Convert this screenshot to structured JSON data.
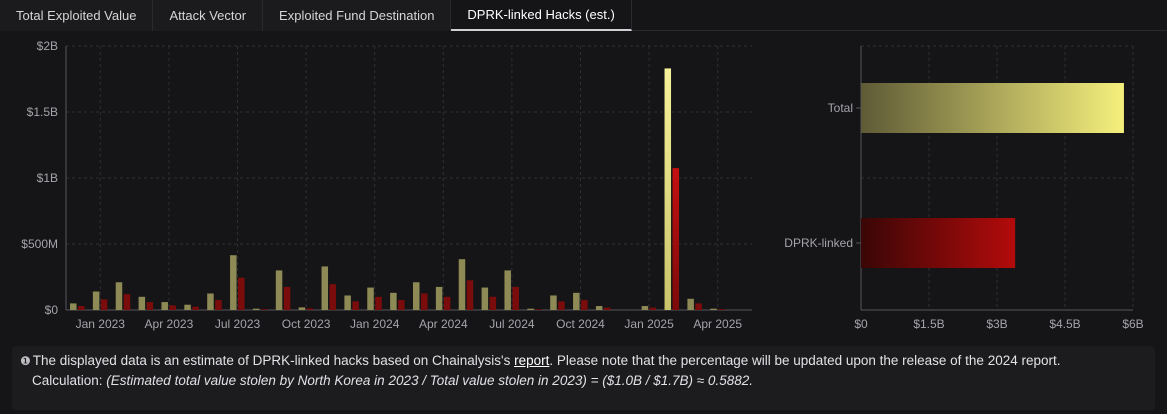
{
  "tabs": [
    {
      "label": "Total Exploited Value"
    },
    {
      "label": "Attack Vector"
    },
    {
      "label": "Exploited Fund Destination"
    },
    {
      "label": "DPRK-linked Hacks (est.)"
    }
  ],
  "colors": {
    "total": "#e9e382",
    "dprk": "#9c0d0d"
  },
  "chart_data": [
    {
      "type": "bar",
      "x_tick_labels": [
        "Jan 2023",
        "Apr 2023",
        "Jul 2023",
        "Oct 2023",
        "Jan 2024",
        "Apr 2024",
        "Jul 2024",
        "Oct 2024",
        "Jan 2025",
        "Apr 2025"
      ],
      "y_tick_labels": [
        "$0",
        "$500M",
        "$1B",
        "$1.5B",
        "$2B"
      ],
      "ylim": [
        0,
        2000
      ],
      "y_unit": "millions USD",
      "grid": true,
      "series": [
        {
          "values": [
            50,
            140,
            210,
            100,
            60,
            40,
            125,
            415,
            10,
            300,
            20,
            330,
            110,
            170,
            130,
            210,
            175,
            385,
            170,
            300,
            10,
            110,
            130,
            30,
            0,
            30,
            1830,
            85,
            10,
            0
          ]
        },
        {
          "values": [
            30,
            80,
            120,
            60,
            35,
            25,
            75,
            245,
            6,
            175,
            12,
            195,
            65,
            100,
            75,
            125,
            100,
            225,
            100,
            175,
            5,
            65,
            75,
            18,
            0,
            18,
            1075,
            50,
            6,
            0
          ]
        }
      ]
    },
    {
      "type": "bar",
      "orientation": "horizontal",
      "categories": [
        "Total",
        "DPRK-linked"
      ],
      "values": [
        5.8,
        3.4
      ],
      "y_unit": "billions USD",
      "x_tick_labels": [
        "$0",
        "$1.5B",
        "$3B",
        "$4.5B",
        "$6B"
      ],
      "xlim": [
        0,
        6
      ],
      "grid": true
    }
  ],
  "note": {
    "icon": "info-icon",
    "text1": "The displayed data is an estimate of DPRK-linked hacks based on Chainalysis's ",
    "link": "report",
    "text2": ". Please note that the percentage will be updated upon the release of the 2024 report.",
    "calc_label": "Calculation: ",
    "calc_formula": "(Estimated total value stolen by North Korea in 2023 / Total value stolen in 2023) = ($1.0B / $1.7B) ≈ 0.5882."
  }
}
